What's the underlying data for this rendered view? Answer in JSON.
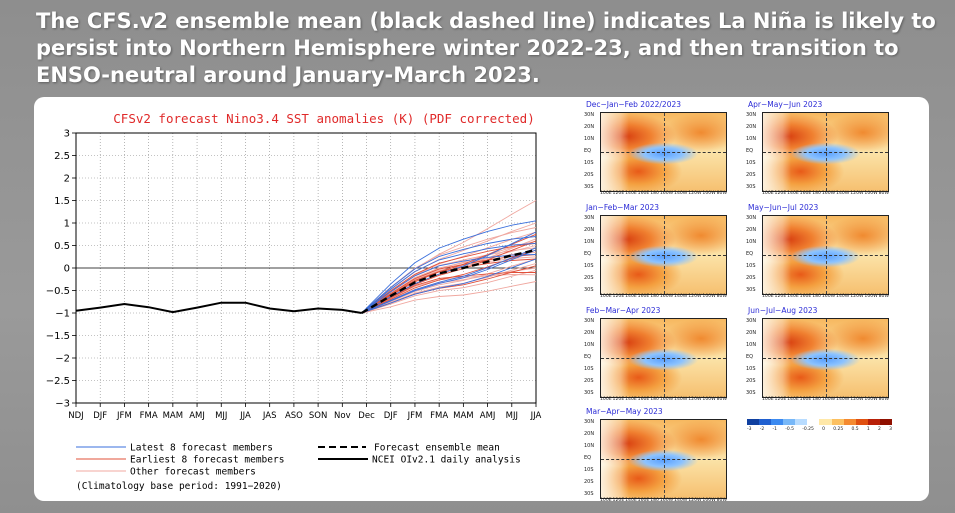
{
  "headline": "The CFS.v2 ensemble mean (black dashed line) indicates La Niña is likely to persist into Northern Hemisphere winter 2022-23, and then transition to ENSO-neutral around January-March 2023.",
  "chart_data": {
    "type": "line",
    "title": "CFSv2 forecast Nino3.4 SST anomalies (K) (PDF corrected)",
    "xlabel": "",
    "ylabel": "",
    "ylim": [
      -3,
      3
    ],
    "yticks": [
      "3",
      "2.5",
      "2",
      "1.5",
      "1",
      "0.5",
      "0",
      "−0.5",
      "−1",
      "−1.5",
      "−2",
      "−2.5",
      "−3"
    ],
    "categories": [
      "NDJ",
      "DJF",
      "JFM",
      "FMA",
      "MAM",
      "AMJ",
      "MJJ",
      "JJA",
      "JAS",
      "ASO",
      "SON",
      "Nov",
      "Dec",
      "DJF",
      "JFM",
      "FMA",
      "MAM",
      "AMJ",
      "MJJ",
      "JJA"
    ],
    "grid": true,
    "legend": [
      {
        "label": "Latest 8 forecast members",
        "color": "#3a6fdc",
        "style": "solid"
      },
      {
        "label": "Earliest 8 forecast members",
        "color": "#e0503a",
        "style": "solid"
      },
      {
        "label": "Other forecast members",
        "color": "#f0a8a0",
        "style": "solid"
      },
      {
        "label": "Forecast ensemble mean",
        "color": "#000000",
        "style": "dashed"
      },
      {
        "label": "NCEI OIv2.1 daily analysis",
        "color": "#000000",
        "style": "solid"
      }
    ],
    "footnote": "(Climatology base period: 1991−2020)",
    "observed": {
      "x_index": [
        0,
        1,
        2,
        3,
        4,
        5,
        6,
        7,
        8,
        9,
        10,
        11,
        11.8
      ],
      "values": [
        -0.95,
        -0.88,
        -0.8,
        -0.87,
        -0.98,
        -0.88,
        -0.77,
        -0.77,
        -0.9,
        -0.96,
        -0.9,
        -0.93,
        -1.0
      ]
    },
    "ensemble_mean": {
      "x_index": [
        11.8,
        13,
        14,
        15,
        16,
        17,
        18,
        19
      ],
      "values": [
        -1.0,
        -0.62,
        -0.32,
        -0.12,
        0.0,
        0.14,
        0.28,
        0.4
      ]
    },
    "latest_members_end": [
      1.05,
      0.8,
      0.55,
      0.4,
      0.3,
      0.2,
      0.7,
      0.45
    ],
    "earliest_members_end": [
      0.75,
      0.55,
      0.4,
      0.2,
      0.05,
      -0.1,
      0.6,
      0.3
    ],
    "other_members_end": [
      1.5,
      1.0,
      0.9,
      0.65,
      0.5,
      0.35,
      0.2,
      0.0,
      -0.15,
      -0.3,
      0.8,
      0.45,
      0.1,
      0.6,
      0.25,
      -0.05
    ]
  },
  "maps": [
    {
      "title": "Dec−Jan−Feb 2022/2023"
    },
    {
      "title": "Apr−May−Jun 2023"
    },
    {
      "title": "Jan−Feb−Mar 2023"
    },
    {
      "title": "May−Jun−Jul 2023"
    },
    {
      "title": "Feb−Mar−Apr 2023"
    },
    {
      "title": "Jun−Jul−Aug 2023"
    },
    {
      "title": "Mar−Apr−May 2023"
    }
  ],
  "map_lat_labels": [
    "30N",
    "20N",
    "10N",
    "EQ",
    "10S",
    "20S",
    "30S"
  ],
  "map_lon_labels": [
    "100E",
    "120E",
    "140E",
    "160E",
    "180",
    "160W",
    "140W",
    "120W",
    "100W",
    "80W"
  ],
  "colorbar": {
    "colors": [
      "#1040a0",
      "#2060d0",
      "#3c8af0",
      "#78b8f8",
      "#b8dcff",
      "#ffffff",
      "#ffe8a8",
      "#fcc060",
      "#f48a30",
      "#e05010",
      "#b82008",
      "#901000"
    ],
    "labels": [
      "-3",
      "-2",
      "-1",
      "-0.5",
      "-0.25",
      "0",
      "0.25",
      "0.5",
      "1",
      "2",
      "3"
    ]
  }
}
